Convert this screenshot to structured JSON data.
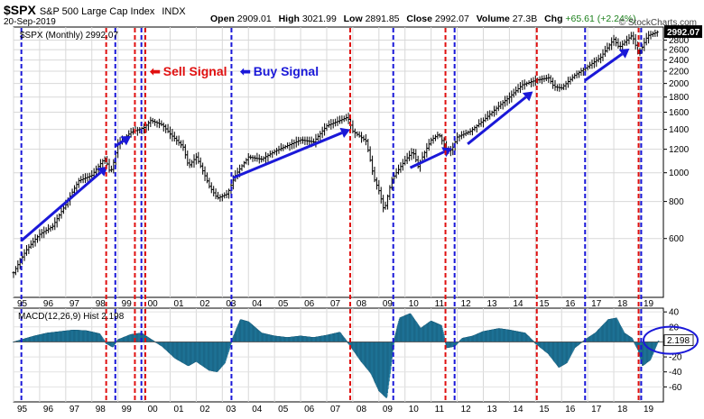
{
  "header": {
    "symbol": "$SPX",
    "name": "S&P 500 Large Cap Index",
    "exchange": "INDX",
    "date": "20-Sep-2019",
    "open_label": "Open",
    "open": "2909.01",
    "high_label": "High",
    "high": "3021.99",
    "low_label": "Low",
    "low": "2891.85",
    "close_label": "Close",
    "close": "2992.07",
    "volume_label": "Volume",
    "volume": "27.3B",
    "chg_label": "Chg",
    "chg": "+65.61 (+2.24%)",
    "credit": "© StockCharts.com"
  },
  "annotations": {
    "sell_label": "Sell Signal",
    "buy_label": "Buy Signal",
    "sell_color": "#e01010",
    "buy_color": "#1a18d8"
  },
  "chart_data": [
    {
      "type": "ohlc",
      "label": "$SPX (Monthly) 2992.07",
      "scale": "log",
      "ylim": [
        380,
        3100
      ],
      "x_range": [
        1995.0,
        2019.9
      ],
      "yticks": [
        600,
        800,
        1000,
        1200,
        1400,
        1600,
        1800,
        2000,
        2200,
        2400,
        2600,
        2800
      ],
      "last_value": "2992.07",
      "x_tick_labels": [
        "95",
        "96",
        "97",
        "98",
        "99",
        "00",
        "01",
        "02",
        "03",
        "04",
        "05",
        "06",
        "07",
        "08",
        "09",
        "10",
        "11",
        "12",
        "13",
        "14",
        "15",
        "16",
        "17",
        "18",
        "19"
      ],
      "price_path": [
        [
          1995.0,
          460
        ],
        [
          1995.5,
          550
        ],
        [
          1996.0,
          620
        ],
        [
          1996.5,
          660
        ],
        [
          1997.0,
          780
        ],
        [
          1997.5,
          940
        ],
        [
          1998.0,
          980
        ],
        [
          1998.5,
          1120
        ],
        [
          1998.7,
          1000
        ],
        [
          1998.8,
          1050
        ],
        [
          1999.0,
          1250
        ],
        [
          1999.5,
          1370
        ],
        [
          2000.0,
          1420
        ],
        [
          2000.25,
          1500
        ],
        [
          2000.7,
          1450
        ],
        [
          2001.0,
          1350
        ],
        [
          2001.5,
          1220
        ],
        [
          2001.7,
          1050
        ],
        [
          2002.0,
          1130
        ],
        [
          2002.5,
          900
        ],
        [
          2002.8,
          820
        ],
        [
          2003.2,
          850
        ],
        [
          2003.5,
          980
        ],
        [
          2004.0,
          1130
        ],
        [
          2004.5,
          1110
        ],
        [
          2005.0,
          1180
        ],
        [
          2006.0,
          1290
        ],
        [
          2006.5,
          1270
        ],
        [
          2007.0,
          1440
        ],
        [
          2007.5,
          1500
        ],
        [
          2007.8,
          1540
        ],
        [
          2008.0,
          1380
        ],
        [
          2008.5,
          1280
        ],
        [
          2008.8,
          960
        ],
        [
          2009.0,
          870
        ],
        [
          2009.2,
          740
        ],
        [
          2009.5,
          950
        ],
        [
          2010.0,
          1100
        ],
        [
          2010.3,
          1180
        ],
        [
          2010.5,
          1050
        ],
        [
          2011.0,
          1290
        ],
        [
          2011.3,
          1350
        ],
        [
          2011.6,
          1180
        ],
        [
          2011.8,
          1200
        ],
        [
          2012.0,
          1320
        ],
        [
          2012.5,
          1380
        ],
        [
          2013.0,
          1500
        ],
        [
          2013.5,
          1650
        ],
        [
          2014.0,
          1800
        ],
        [
          2014.5,
          1980
        ],
        [
          2015.0,
          2050
        ],
        [
          2015.5,
          2090
        ],
        [
          2015.7,
          1950
        ],
        [
          2016.0,
          1930
        ],
        [
          2016.5,
          2130
        ],
        [
          2017.0,
          2280
        ],
        [
          2017.5,
          2450
        ],
        [
          2018.0,
          2820
        ],
        [
          2018.2,
          2640
        ],
        [
          2018.7,
          2910
        ],
        [
          2018.95,
          2500
        ],
        [
          2019.3,
          2900
        ],
        [
          2019.72,
          2992
        ]
      ],
      "trend_arrows": [
        {
          "from": [
            1995.3,
            590
          ],
          "to": [
            1998.6,
            1050
          ]
        },
        {
          "from": [
            1998.9,
            1230
          ],
          "to": [
            1999.5,
            1330
          ]
        },
        {
          "from": [
            2003.4,
            960
          ],
          "to": [
            2007.9,
            1400
          ]
        },
        {
          "from": [
            2010.2,
            1040
          ],
          "to": [
            2011.8,
            1210
          ]
        },
        {
          "from": [
            2012.4,
            1250
          ],
          "to": [
            2014.9,
            1880
          ]
        },
        {
          "from": [
            2016.9,
            2050
          ],
          "to": [
            2018.6,
            2620
          ]
        }
      ],
      "sell_signals": [
        1998.55,
        1999.65,
        2000.05,
        2007.9,
        2011.55,
        2015.05,
        2018.95
      ],
      "buy_signals": [
        1995.3,
        1998.9,
        1999.9,
        2003.35,
        2009.55,
        2011.9,
        2016.9,
        2019.05
      ]
    },
    {
      "type": "histogram",
      "label": "MACD(12,26,9) Hist 2.198",
      "ylim": [
        -80,
        45
      ],
      "yticks": [
        40,
        20,
        0,
        -20,
        -40,
        -60
      ],
      "last_value": "2.198",
      "x_range": [
        1995.0,
        2019.9
      ],
      "hist_path": [
        [
          1995.0,
          0
        ],
        [
          1995.3,
          3
        ],
        [
          1995.8,
          8
        ],
        [
          1996.3,
          12
        ],
        [
          1996.8,
          14
        ],
        [
          1997.3,
          16
        ],
        [
          1997.8,
          15
        ],
        [
          1998.3,
          11
        ],
        [
          1998.55,
          -2
        ],
        [
          1998.8,
          -7
        ],
        [
          1999.0,
          3
        ],
        [
          1999.5,
          10
        ],
        [
          1999.9,
          12
        ],
        [
          2000.2,
          5
        ],
        [
          2000.7,
          -6
        ],
        [
          2001.2,
          -22
        ],
        [
          2001.7,
          -32
        ],
        [
          2002.0,
          -26
        ],
        [
          2002.5,
          -38
        ],
        [
          2002.8,
          -40
        ],
        [
          2003.1,
          -28
        ],
        [
          2003.4,
          5
        ],
        [
          2003.7,
          30
        ],
        [
          2004.0,
          27
        ],
        [
          2004.5,
          12
        ],
        [
          2005.0,
          8
        ],
        [
          2005.5,
          6
        ],
        [
          2006.0,
          8
        ],
        [
          2006.5,
          6
        ],
        [
          2007.0,
          9
        ],
        [
          2007.5,
          13
        ],
        [
          2007.9,
          -5
        ],
        [
          2008.3,
          -25
        ],
        [
          2008.7,
          -42
        ],
        [
          2009.0,
          -65
        ],
        [
          2009.3,
          -75
        ],
        [
          2009.6,
          5
        ],
        [
          2009.8,
          32
        ],
        [
          2010.2,
          38
        ],
        [
          2010.6,
          18
        ],
        [
          2011.0,
          28
        ],
        [
          2011.4,
          22
        ],
        [
          2011.6,
          -8
        ],
        [
          2011.9,
          -6
        ],
        [
          2012.2,
          5
        ],
        [
          2012.6,
          8
        ],
        [
          2013.0,
          14
        ],
        [
          2013.6,
          18
        ],
        [
          2014.0,
          16
        ],
        [
          2014.6,
          12
        ],
        [
          2015.0,
          -2
        ],
        [
          2015.5,
          -16
        ],
        [
          2015.9,
          -34
        ],
        [
          2016.2,
          -28
        ],
        [
          2016.5,
          -8
        ],
        [
          2016.9,
          3
        ],
        [
          2017.3,
          12
        ],
        [
          2017.8,
          30
        ],
        [
          2018.1,
          32
        ],
        [
          2018.4,
          12
        ],
        [
          2018.7,
          5
        ],
        [
          2018.95,
          -12
        ],
        [
          2019.1,
          -32
        ],
        [
          2019.4,
          -24
        ],
        [
          2019.72,
          2.2
        ]
      ]
    }
  ]
}
